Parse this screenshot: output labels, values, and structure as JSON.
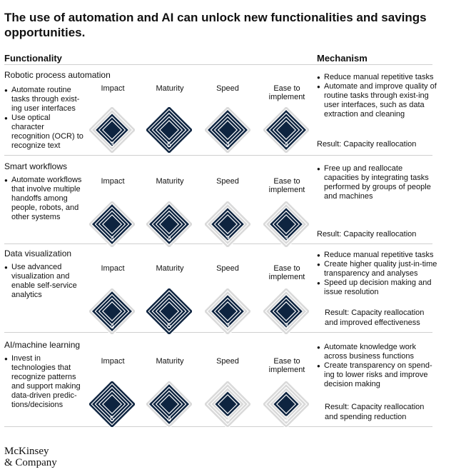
{
  "title": "The use of automation and AI can unlock new functionalities and savings opportunities.",
  "headers": {
    "functionality": "Functionality",
    "mechanism": "Mechanism"
  },
  "metric_labels": [
    "Impact",
    "Maturity",
    "Speed",
    "Ease to implement"
  ],
  "colors": {
    "dark": "#0e2440",
    "light": "#d9d9d9",
    "rule": "#cfcfcf"
  },
  "rows": [
    {
      "name": "Robotic process automation",
      "bullets": [
        "Automate routine tasks through exist-ing user interfaces",
        "Use optical character recognition (OCR) to recognize text"
      ],
      "scores": [
        3,
        5,
        4,
        4
      ],
      "mechanism": [
        "Reduce manual repetitive tasks",
        "Automate and improve quality of routine tasks through exist-ing user interfaces, such as data extraction and cleaning"
      ],
      "result": "Result: Capacity reallocation"
    },
    {
      "name": "Smart workflows",
      "bullets": [
        "Automate workflows that involve multiple handoffs among people, robots, and other systems"
      ],
      "scores": [
        4,
        4,
        3,
        3
      ],
      "mechanism": [
        "Free up and reallocate capacities by integrating tasks performed by groups of people and machines"
      ],
      "result": "Result: Capacity reallocation"
    },
    {
      "name": "Data visualization",
      "bullets": [
        "Use advanced visualization and enable self-service analytics"
      ],
      "scores": [
        4,
        5,
        3,
        3
      ],
      "mechanism": [
        "Reduce manual repetitive tasks",
        "Create higher quality just-in-time transparency and analyses",
        "Speed up decision making and issue resolution"
      ],
      "result": "Result: Capacity reallocation and improved effectiveness"
    },
    {
      "name": "AI/machine learning",
      "bullets": [
        "Invest in technologies that recognize patterns and support making data-driven predic-tions/decisions"
      ],
      "scores": [
        5,
        4,
        2,
        2
      ],
      "mechanism": [
        "Automate knowledge work across business functions",
        "Create transparency on spend-ing to lower risks and improve decision making"
      ],
      "result": "Result: Capacity reallocation and spending reduction"
    }
  ],
  "logo": {
    "line1": "McKinsey",
    "line2": "& Company"
  }
}
